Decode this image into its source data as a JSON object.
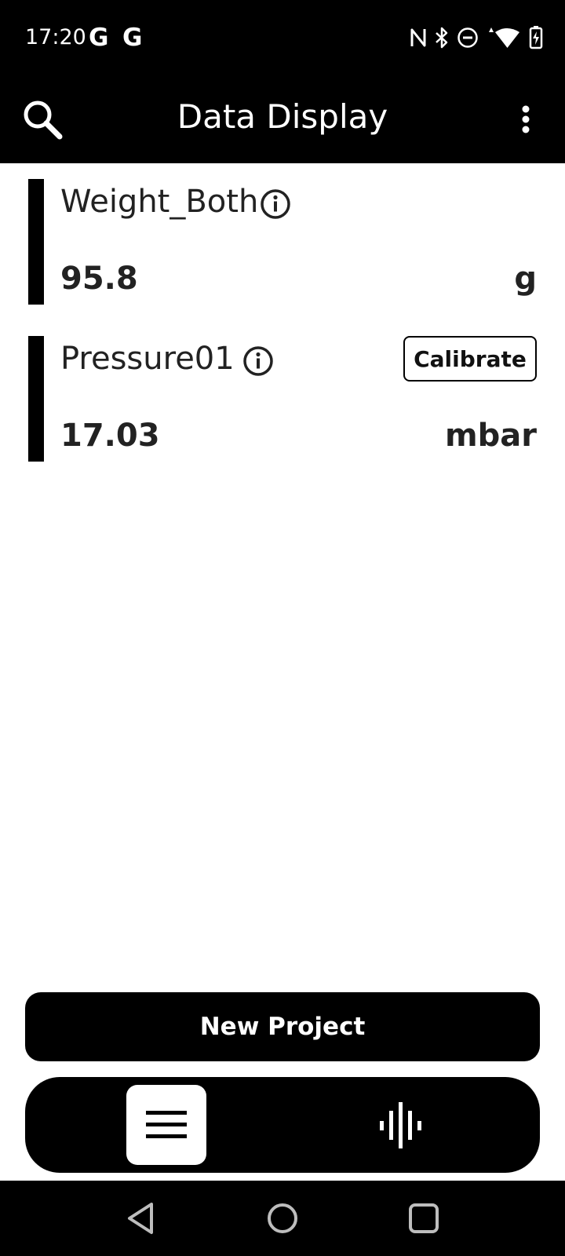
{
  "status_bar": {
    "time": "17:20",
    "notification_icons": [
      "G",
      "G"
    ],
    "system_icons": [
      "nfc-icon",
      "bluetooth-icon",
      "dnd-icon",
      "wifi-icon",
      "battery-charging-icon"
    ]
  },
  "app_bar": {
    "title": "Data Display",
    "search_icon": "search-icon",
    "menu_icon": "more-vert-icon"
  },
  "sensors": [
    {
      "name": "Weight_Both",
      "value": "95.8",
      "unit": "g"
    },
    {
      "name": "Pressure01",
      "value": "17.03",
      "unit": "mbar",
      "action_label": "Calibrate"
    }
  ],
  "actions": {
    "new_project_label": "New Project"
  },
  "bottom_nav": {
    "items": [
      {
        "icon": "list-icon",
        "selected": true
      },
      {
        "icon": "waveform-icon",
        "selected": false
      }
    ]
  },
  "colors": {
    "bar": "#000000",
    "background": "#ffffff",
    "text": "#222222"
  }
}
